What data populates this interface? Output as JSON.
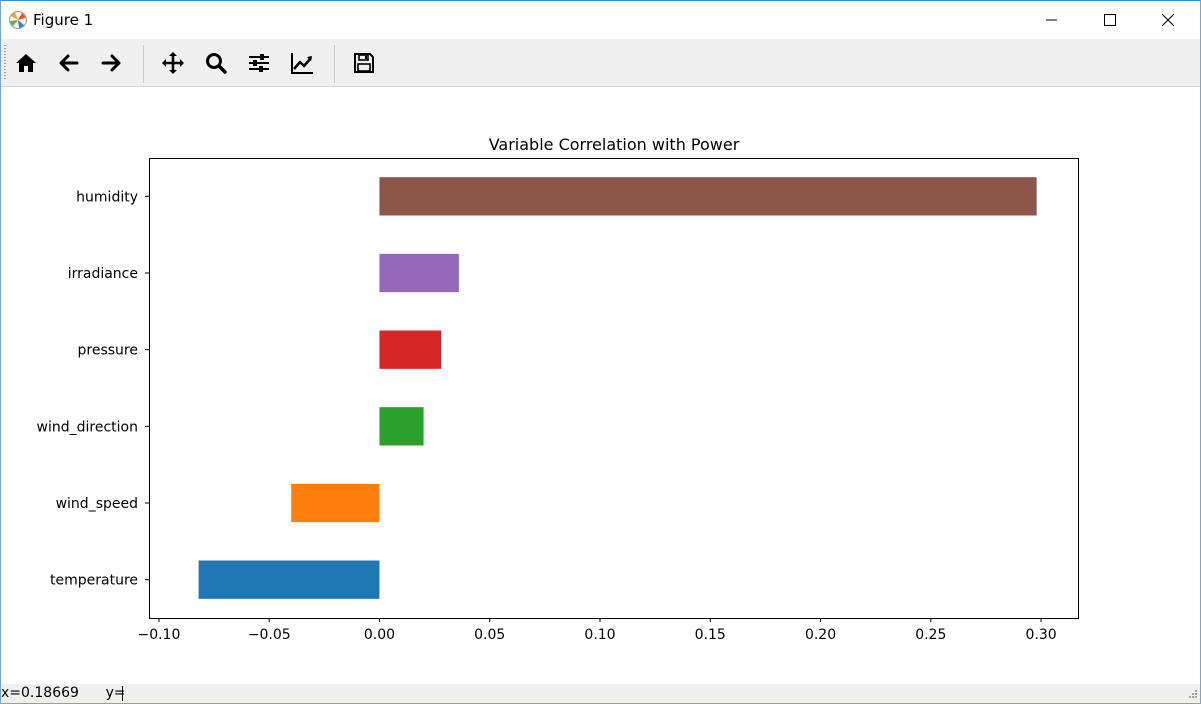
{
  "window": {
    "title": "Figure 1"
  },
  "toolbar": {
    "icons": [
      "home-icon",
      "back-arrow-icon",
      "forward-arrow-icon",
      "pan-icon",
      "zoom-icon",
      "configure-subplots-icon",
      "edit-axis-icon",
      "save-icon"
    ]
  },
  "status": {
    "text": "x=0.18669      y="
  },
  "chart_data": {
    "type": "bar",
    "orientation": "horizontal",
    "title": "Variable Correlation with Power",
    "xlabel": "",
    "ylabel": "",
    "categories": [
      "temperature",
      "wind_speed",
      "wind_direction",
      "pressure",
      "irradiance",
      "humidity"
    ],
    "values": [
      -0.082,
      -0.04,
      0.02,
      0.028,
      0.036,
      0.298
    ],
    "colors": [
      "#1f77b4",
      "#ff7f0e",
      "#2ca02c",
      "#d62728",
      "#9467bd",
      "#8c564b"
    ],
    "xlim": [
      -0.1045,
      0.3172
    ],
    "xticks": [
      -0.1,
      -0.05,
      0.0,
      0.05,
      0.1,
      0.15,
      0.2,
      0.25,
      0.3
    ],
    "xtick_labels": [
      "−0.10",
      "−0.05",
      "0.00",
      "0.05",
      "0.10",
      "0.15",
      "0.20",
      "0.25",
      "0.30"
    ],
    "grid": false,
    "legend": "none"
  }
}
